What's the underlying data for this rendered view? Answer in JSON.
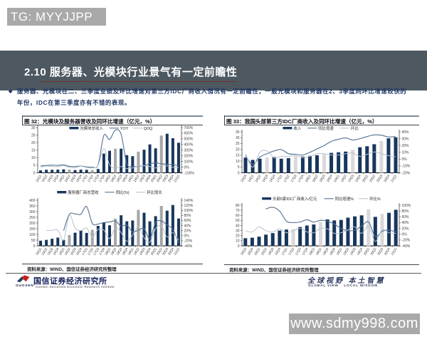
{
  "badges": {
    "tg": "TG: MYYJJPP",
    "site": "www.sdmy998.com"
  },
  "header": {
    "section_no": "2.10",
    "title": "服务器、光模块行业景气有一定前瞻性",
    "bar_color": "#4d5861",
    "underline_color": "#733028"
  },
  "bullet": {
    "marker": "◆",
    "text": "服务器、光模块在二、三季度业绩及环比增速对第三方IDC厂商收入情况有一定前瞻性，一般光模块和服务器在2、3季度同环比增速较快的年份，IDC在第三季度亦有不错的表现。"
  },
  "figures": [
    {
      "label": "图 32：",
      "title": "光模块及服务器营收及同环比增速（亿元，%）",
      "source": "资料来源：WIND、国信证券经济研究所整理",
      "chart_indices": [
        0,
        1
      ]
    },
    {
      "label": "图 33：",
      "title": "我国头部第三方IDC厂商收入及同环比增速（亿元，%）",
      "source": "资料来源：WIND、国信证券经济研究所整理",
      "chart_indices": [
        2,
        3
      ]
    }
  ],
  "chart_data": [
    {
      "type": "bar+line",
      "title": "光模块及服务器营收及同环比增速（亿元，%）",
      "categories": [
        "15Q1",
        "15Q2",
        "15Q3",
        "15Q4",
        "16Q1",
        "16Q2",
        "16Q3",
        "16Q4",
        "17Q1",
        "17Q2",
        "17Q3",
        "17Q4",
        "18Q1",
        "18Q2",
        "18Q3",
        "18Q4",
        "19Q1",
        "19Q2",
        "19Q3",
        "19Q4",
        "20Q1",
        "20Q2",
        "20Q3",
        "20Q4",
        "21Q1"
      ],
      "bar": {
        "name": "光模块总收入",
        "values": [
          1.6,
          2.0,
          2.0,
          2.1,
          2.3,
          2.1,
          1.8,
          2.1,
          2.0,
          1.8,
          2.5,
          12.7,
          14.6,
          16.0,
          16.0,
          11.7,
          11.0,
          14.0,
          15.3,
          18.8,
          16.2,
          24.7,
          25.9,
          22.9,
          19.9
        ],
        "gray_indices": [
          5,
          9,
          13,
          17,
          21
        ]
      },
      "series": [
        {
          "name": "YOY",
          "axis": "right",
          "values": [
            20,
            30,
            35,
            30,
            40,
            15,
            10,
            20,
            5,
            0,
            40,
            560,
            490,
            655,
            580,
            60,
            10,
            15,
            30,
            60,
            75,
            60,
            50,
            45,
            25
          ]
        },
        {
          "name": "QOQ",
          "axis": "right",
          "values": [
            0,
            20,
            10,
            10,
            25,
            -5,
            -10,
            15,
            -5,
            -15,
            30,
            330,
            40,
            -15,
            10,
            -25,
            -15,
            20,
            25,
            10,
            -15,
            35,
            20,
            0,
            -10
          ]
        }
      ],
      "y_left": {
        "min": 0,
        "max": 30,
        "step": 5
      },
      "y_right": {
        "min": -100,
        "max": 700,
        "step": 100,
        "suffix": "%"
      },
      "colors": {
        "bar": "#17365d",
        "bar_gray": "#a6a6a6",
        "line1": "#50708f",
        "line2": "#b7c3cd"
      }
    },
    {
      "type": "bar+line",
      "title": "服务器厂商总营收及同环比（亿元，%）",
      "categories": [
        "15Q1",
        "15Q2",
        "15Q3",
        "15Q4",
        "16Q1",
        "16Q2",
        "16Q3",
        "16Q4",
        "17Q1",
        "17Q2",
        "17Q3",
        "17Q4",
        "18Q1",
        "18Q2",
        "18Q3",
        "18Q4",
        "19Q1",
        "19Q2",
        "19Q3",
        "19Q4",
        "20Q1",
        "20Q2",
        "20Q3",
        "20Q4",
        "21Q1"
      ],
      "bar": {
        "name": "服务器厂商总营收",
        "values": [
          45,
          52,
          62,
          72,
          52,
          95,
          115,
          135,
          113,
          140,
          175,
          205,
          180,
          238,
          268,
          215,
          222,
          315,
          290,
          215,
          260,
          350,
          308,
          358,
          240
        ],
        "gray_indices": [
          5,
          9,
          13,
          17,
          21
        ]
      },
      "series": [
        {
          "name": "同比(%)",
          "axis": "right",
          "values": [
            null,
            null,
            null,
            null,
            20,
            84,
            86,
            85,
            115,
            48,
            46,
            52,
            54,
            58,
            38,
            42,
            15,
            22,
            28,
            -12,
            52,
            58,
            42,
            25,
            -28
          ]
        },
        {
          "name": "环比增长",
          "axis": "right",
          "values": [
            null,
            21,
            21,
            22,
            -17,
            80,
            30,
            20,
            30,
            -5,
            25,
            22,
            -12,
            32,
            12,
            -22,
            2,
            35,
            -8,
            -25,
            28,
            38,
            -5,
            12,
            -18
          ]
        }
      ],
      "y_left": {
        "min": 0,
        "max": 400,
        "step": 50
      },
      "y_right": {
        "min": -40,
        "max": 140,
        "step": 20,
        "suffix": "%"
      },
      "colors": {
        "bar": "#17365d",
        "bar_gray": "#a6a6a6",
        "line1": "#50708f",
        "line2": "#b7c3cd"
      }
    },
    {
      "type": "bar+line",
      "title": "我国头部第三方IDC厂商收入及同环比增速（亿元，%）",
      "categories": [
        "15Q4",
        "16Q1",
        "16Q2",
        "16Q3",
        "16Q4",
        "17Q1",
        "17Q2",
        "17Q3",
        "17Q4",
        "18Q1",
        "18Q2",
        "18Q3",
        "18Q4",
        "19Q1",
        "19Q2",
        "19Q3",
        "19Q4",
        "20Q1",
        "20Q2",
        "20Q3",
        "20Q4",
        "21Q1"
      ],
      "bar": {
        "name": "收入",
        "values": [
          13,
          11,
          12,
          13,
          13.5,
          12,
          12.5,
          14,
          13.8,
          14.5,
          15,
          16,
          17,
          17.5,
          18.1,
          19.7,
          21.8,
          22.7,
          24.4,
          27.1,
          29.4,
          30.3
        ],
        "gray_indices": [
          3,
          7,
          11,
          15,
          19
        ]
      },
      "series": [
        {
          "name": "同比增速",
          "axis": "right",
          "values": [
            5,
            -8,
            3,
            8,
            12,
            14,
            8,
            7,
            6,
            10,
            15,
            20,
            26,
            29,
            31,
            28,
            30,
            33,
            35.5,
            35,
            32.5,
            33
          ]
        },
        {
          "name": "环比",
          "axis": "right",
          "values": [
            8,
            -12,
            10,
            12,
            2,
            4,
            4,
            5,
            2,
            4,
            8,
            8,
            6,
            6,
            8,
            9,
            4,
            7,
            10.5,
            8,
            5,
            3.5
          ]
        }
      ],
      "y_left": {
        "min": 0,
        "max": 35,
        "step": 5
      },
      "y_right": {
        "min": -20,
        "max": 40,
        "step": 10,
        "suffix": "%"
      },
      "colors": {
        "bar": "#17365d",
        "bar_gray": "#d9d9d9",
        "line1": "#50708f",
        "line2": "#b7c3cd"
      }
    },
    {
      "type": "bar+line",
      "title": "头部5家IDC厂商收入及同环比增速（亿元，%）",
      "categories": [
        "15Q3",
        "15Q4",
        "16Q1",
        "16Q2",
        "16Q3",
        "16Q4",
        "17Q1",
        "17Q2",
        "17Q3",
        "17Q4",
        "18Q1",
        "18Q2",
        "18Q3",
        "18Q4",
        "19Q1",
        "19Q2",
        "19Q3",
        "19Q4",
        "20Q1",
        "20Q2",
        "20Q3",
        "20Q4",
        "21Q1"
      ],
      "bar": {
        "name": "头部5家IDC厂商收入/亿元",
        "values": [
          15,
          16,
          18,
          22,
          25,
          30,
          32,
          33,
          37,
          40,
          42,
          47,
          52,
          50,
          51,
          55.5,
          58,
          60,
          72,
          57,
          63,
          65,
          71
        ],
        "gray_indices": [
          7,
          11,
          18,
          20
        ]
      },
      "series": [
        {
          "name": "同比增速%",
          "axis": "right",
          "values": [
            null,
            null,
            null,
            87,
            93,
            80,
            45,
            40,
            42,
            50,
            42,
            48,
            45,
            35,
            20,
            12,
            14,
            28,
            42,
            -8,
            10,
            14,
            8
          ]
        },
        {
          "name": "环比%",
          "axis": "right",
          "values": [
            12,
            8,
            25,
            12,
            8,
            18,
            5,
            12,
            20,
            8,
            5,
            20,
            18,
            3,
            5,
            15,
            25,
            3,
            28,
            -25,
            15,
            5,
            3
          ]
        }
      ],
      "y_left": {
        "min": 0,
        "max": 80,
        "step": 10
      },
      "y_right": {
        "min": -40,
        "max": 100,
        "step": 20,
        "suffix": "%"
      },
      "colors": {
        "bar": "#17365d",
        "bar_gray": "#d9d9d9",
        "line1": "#50708f",
        "line2": "#b7c3cd"
      }
    }
  ],
  "footer": {
    "logo_text": "GUOSEN",
    "org_cn": "国信证券经济研究所",
    "org_en": "Guosen Securities Economic Research Institute",
    "slogan_cn": "全球视野  本土智慧",
    "slogan_en": "GLOBAL VIEW　 LOCAL WISDOM"
  }
}
